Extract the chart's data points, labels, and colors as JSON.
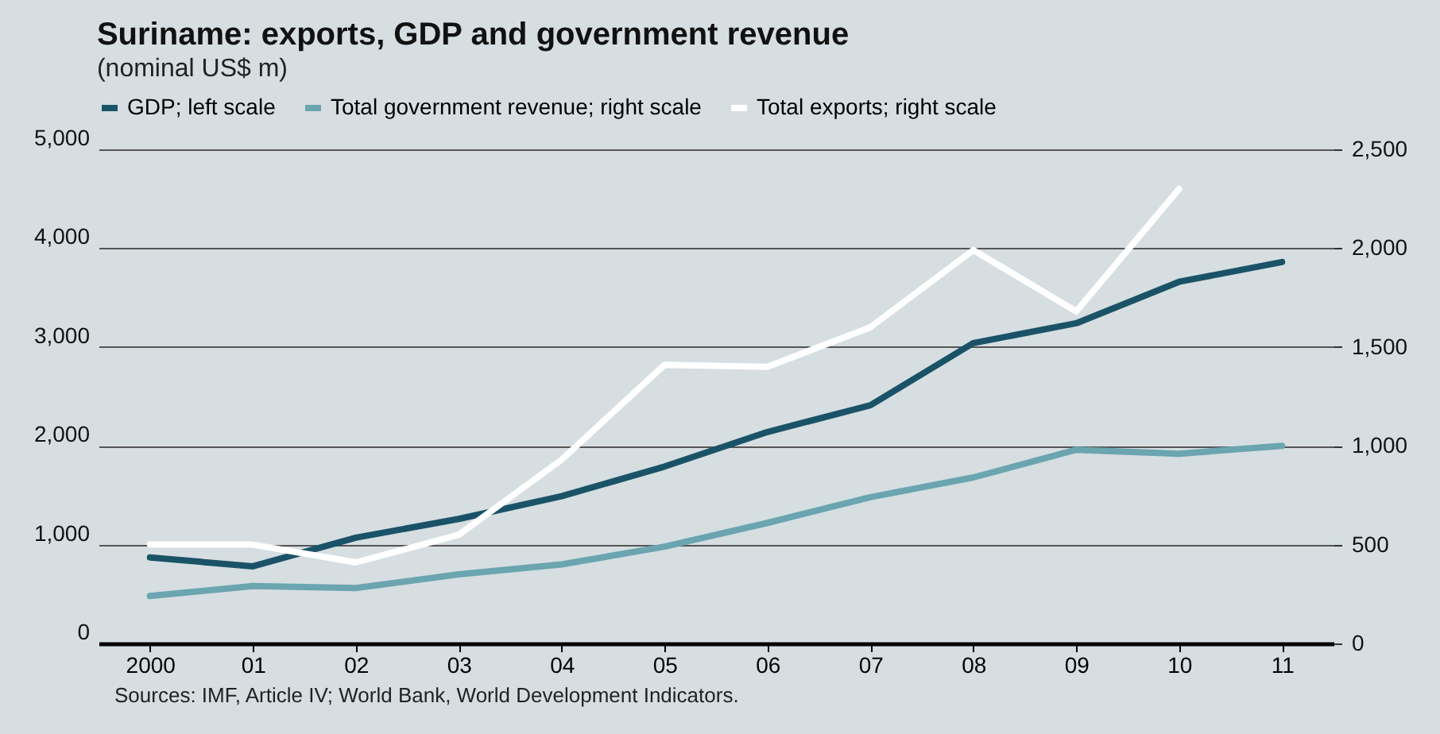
{
  "chart_data": {
    "type": "line",
    "title": "Suriname: exports, GDP and government revenue",
    "subtitle": "(nominal US$ m)",
    "categories": [
      "2000",
      "01",
      "02",
      "03",
      "04",
      "05",
      "06",
      "07",
      "08",
      "09",
      "10",
      "11"
    ],
    "series": [
      {
        "name": "GDP; left scale",
        "color": "#1a5368",
        "values": [
          870,
          780,
          1070,
          1260,
          1490,
          1790,
          2140,
          2410,
          3040,
          3240,
          3660,
          3860
        ]
      },
      {
        "name": "Total government revenue; right scale",
        "color": "#6aa5b0",
        "axis": "y2",
        "values": [
          240,
          290,
          280,
          350,
          400,
          490,
          610,
          740,
          840,
          980,
          960,
          1000
        ]
      },
      {
        "name": "Total exports; right scale",
        "color": "#ffffff",
        "axis": "y2",
        "values": [
          500,
          500,
          410,
          550,
          930,
          1410,
          1400,
          1600,
          1990,
          1680,
          2300,
          null
        ]
      }
    ],
    "ylim": [
      0,
      5000
    ],
    "yticks": [
      {
        "value": 0,
        "label": "0"
      },
      {
        "value": 1000,
        "label": "1,000"
      },
      {
        "value": 2000,
        "label": "2,000"
      },
      {
        "value": 3000,
        "label": "3,000"
      },
      {
        "value": 4000,
        "label": "4,000"
      },
      {
        "value": 5000,
        "label": "5,000"
      }
    ],
    "y2lim": [
      0,
      2500
    ],
    "y2ticks": [
      {
        "value": 0,
        "label": "0"
      },
      {
        "value": 500,
        "label": "500"
      },
      {
        "value": 1000,
        "label": "1,000"
      },
      {
        "value": 1500,
        "label": "1,500"
      },
      {
        "value": 2000,
        "label": "2,000"
      },
      {
        "value": 2500,
        "label": "2,500"
      }
    ],
    "grid": "y",
    "legend": "top",
    "annotations": [
      "Sources: IMF, Article IV; World Bank, World Development Indicators."
    ]
  }
}
